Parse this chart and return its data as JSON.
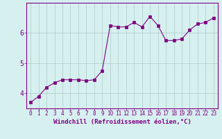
{
  "x": [
    0,
    1,
    2,
    3,
    4,
    5,
    6,
    7,
    8,
    9,
    10,
    11,
    12,
    13,
    14,
    15,
    16,
    17,
    18,
    19,
    20,
    21,
    22,
    23
  ],
  "y": [
    3.7,
    3.9,
    4.2,
    4.35,
    4.45,
    4.45,
    4.45,
    4.42,
    4.45,
    4.75,
    6.25,
    6.2,
    6.2,
    6.35,
    6.2,
    6.55,
    6.25,
    5.75,
    5.75,
    5.8,
    6.1,
    6.3,
    6.35,
    6.5
  ],
  "line_color": "#800080",
  "marker": "s",
  "marker_size": 2.5,
  "bg_color": "#d6f0f0",
  "grid_color": "#b0c8c8",
  "xlabel": "Windchill (Refroidissement éolien,°C)",
  "ylabel": "",
  "ylim": [
    3.5,
    7.0
  ],
  "xlim": [
    -0.5,
    23.5
  ],
  "yticks": [
    4,
    5,
    6
  ],
  "xticks": [
    0,
    1,
    2,
    3,
    4,
    5,
    6,
    7,
    8,
    9,
    10,
    11,
    12,
    13,
    14,
    15,
    16,
    17,
    18,
    19,
    20,
    21,
    22,
    23
  ],
  "tick_color": "#800080",
  "label_color": "#800080",
  "spine_color": "#800080",
  "tick_fontsize": 5.5,
  "xlabel_fontsize": 6.5
}
